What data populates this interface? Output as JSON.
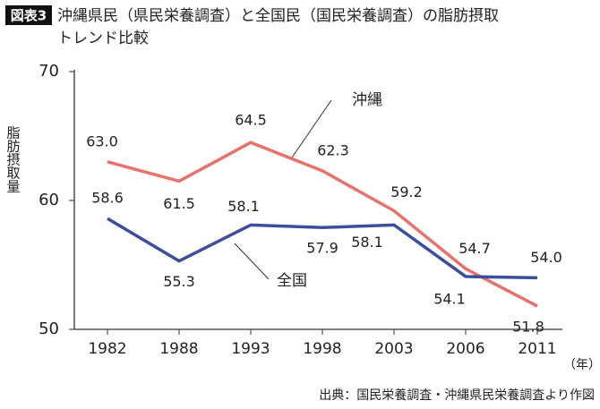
{
  "chart_data": {
    "type": "line",
    "title_label": "図表3",
    "title": [
      "沖縄県民（県民栄養調査）と全国民（国民栄養調査）の脂肪摂取",
      "トレンド比較"
    ],
    "y_label": "脂肪摂取量",
    "x_unit": "（年）",
    "source": "出典：国民栄養調査・沖縄県民栄養調査より作図",
    "categories": [
      "1982",
      "1988",
      "1993",
      "1998",
      "2003",
      "2006",
      "2011"
    ],
    "series": [
      {
        "name": "沖縄",
        "color": "#e8716d",
        "values": [
          63.0,
          61.5,
          64.5,
          62.3,
          59.2,
          54.7,
          51.8
        ],
        "value_labels": [
          "63.0",
          "61.5",
          "64.5",
          "62.3",
          "59.2",
          "54.7",
          "51.8"
        ]
      },
      {
        "name": "全国",
        "color": "#3b4f9e",
        "values": [
          58.6,
          55.3,
          58.1,
          57.9,
          58.1,
          54.1,
          54.0
        ],
        "value_labels": [
          "58.6",
          "55.3",
          "58.1",
          "57.9",
          "58.1",
          "54.1",
          "54.0"
        ]
      }
    ],
    "ylim": [
      50,
      70
    ],
    "yticks": [
      50,
      60,
      70
    ],
    "grid": false
  }
}
